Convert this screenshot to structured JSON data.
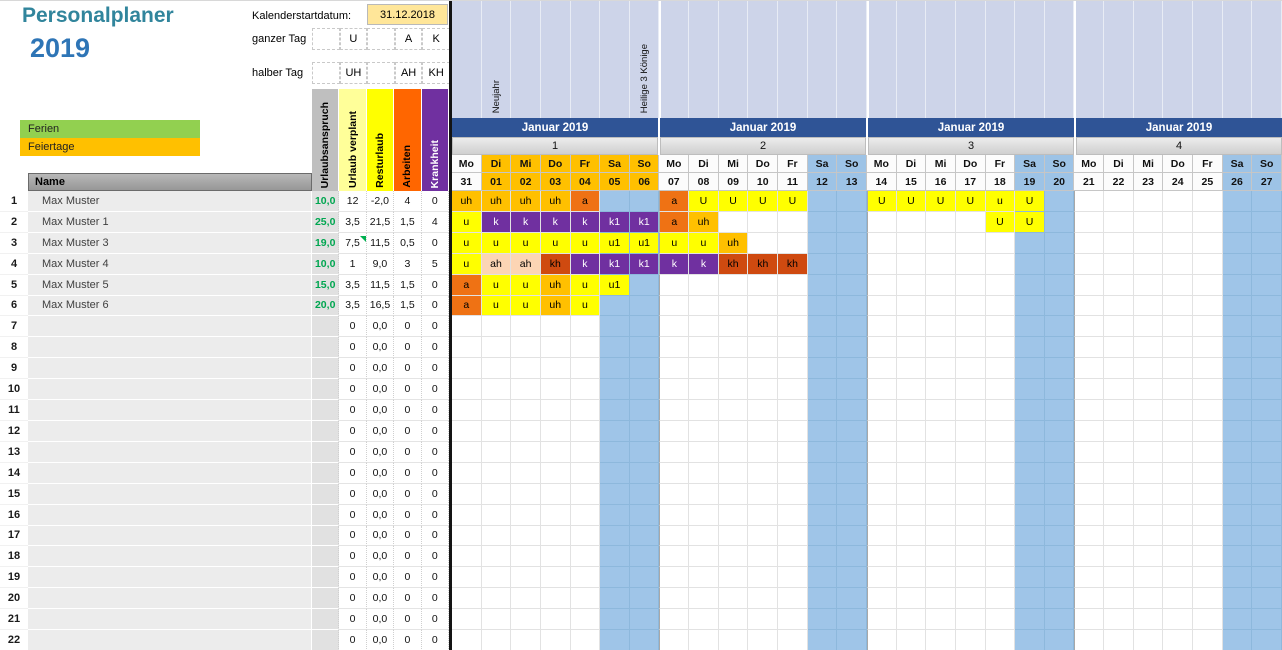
{
  "app": {
    "title": "Personalplaner",
    "year": "2019"
  },
  "calendar_start": {
    "label": "Kalenderstartdatum:",
    "value": "31.12.2018"
  },
  "day_codes": {
    "full_label": "ganzer Tag",
    "half_label": "halber Tag",
    "full": [
      "U",
      "A",
      "K"
    ],
    "half": [
      "UH",
      "AH",
      "KH"
    ]
  },
  "legend": {
    "ferien": {
      "label": "Ferien",
      "color": "#92d050"
    },
    "feiertage": {
      "label": "Feiertage",
      "color": "#ffc000"
    }
  },
  "table": {
    "name_header": "Name",
    "stat_headers": [
      {
        "label": "Urlaubsanspruch",
        "bg": "#bfbfbf",
        "fg": "#000000"
      },
      {
        "label": "Urlaub verplant",
        "bg": "#ffff99",
        "fg": "#000000"
      },
      {
        "label": "Resturlaub",
        "bg": "#ffff00",
        "fg": "#000000"
      },
      {
        "label": "Arbeiten",
        "bg": "#ff6600",
        "fg": "#000000"
      },
      {
        "label": "Krankheit",
        "bg": "#7030a0",
        "fg": "#ffffff"
      }
    ],
    "rows": [
      {
        "num": "1",
        "name": "Max Muster",
        "stats": [
          "10,0",
          "12",
          "-2,0",
          "4",
          "0"
        ]
      },
      {
        "num": "2",
        "name": "Max Muster 1",
        "stats": [
          "25,0",
          "3,5",
          "21,5",
          "1,5",
          "4"
        ]
      },
      {
        "num": "3",
        "name": "Max Muster 3",
        "stats": [
          "19,0",
          "7,5",
          "11,5",
          "0,5",
          "0"
        ],
        "comment_flag": true
      },
      {
        "num": "4",
        "name": "Max Muster 4",
        "stats": [
          "10,0",
          "1",
          "9,0",
          "3",
          "5"
        ]
      },
      {
        "num": "5",
        "name": "Max Muster 5",
        "stats": [
          "15,0",
          "3,5",
          "11,5",
          "1,5",
          "0"
        ]
      },
      {
        "num": "6",
        "name": "Max Muster 6",
        "stats": [
          "20,0",
          "3,5",
          "16,5",
          "1,5",
          "0"
        ]
      },
      {
        "num": "7",
        "name": "",
        "stats": [
          "",
          "0",
          "0,0",
          "0",
          "0"
        ]
      },
      {
        "num": "8",
        "name": "",
        "stats": [
          "",
          "0",
          "0,0",
          "0",
          "0"
        ]
      },
      {
        "num": "9",
        "name": "",
        "stats": [
          "",
          "0",
          "0,0",
          "0",
          "0"
        ]
      },
      {
        "num": "10",
        "name": "",
        "stats": [
          "",
          "0",
          "0,0",
          "0",
          "0"
        ]
      },
      {
        "num": "11",
        "name": "",
        "stats": [
          "",
          "0",
          "0,0",
          "0",
          "0"
        ]
      },
      {
        "num": "12",
        "name": "",
        "stats": [
          "",
          "0",
          "0,0",
          "0",
          "0"
        ]
      },
      {
        "num": "13",
        "name": "",
        "stats": [
          "",
          "0",
          "0,0",
          "0",
          "0"
        ]
      },
      {
        "num": "14",
        "name": "",
        "stats": [
          "",
          "0",
          "0,0",
          "0",
          "0"
        ]
      },
      {
        "num": "15",
        "name": "",
        "stats": [
          "",
          "0",
          "0,0",
          "0",
          "0"
        ]
      },
      {
        "num": "16",
        "name": "",
        "stats": [
          "",
          "0",
          "0,0",
          "0",
          "0"
        ]
      },
      {
        "num": "17",
        "name": "",
        "stats": [
          "",
          "0",
          "0,0",
          "0",
          "0"
        ]
      },
      {
        "num": "18",
        "name": "",
        "stats": [
          "",
          "0",
          "0,0",
          "0",
          "0"
        ]
      },
      {
        "num": "19",
        "name": "",
        "stats": [
          "",
          "0",
          "0,0",
          "0",
          "0"
        ]
      },
      {
        "num": "20",
        "name": "",
        "stats": [
          "",
          "0",
          "0,0",
          "0",
          "0"
        ]
      },
      {
        "num": "21",
        "name": "",
        "stats": [
          "",
          "0",
          "0,0",
          "0",
          "0"
        ]
      },
      {
        "num": "22",
        "name": "",
        "stats": [
          "",
          "0",
          "0,0",
          "0",
          "0"
        ]
      }
    ]
  },
  "calendar": {
    "month_label": "Januar 2019",
    "day_names": [
      "Mo",
      "Di",
      "Mi",
      "Do",
      "Fr",
      "Sa",
      "So"
    ],
    "weeks": [
      {
        "number": "1",
        "day_nums": [
          "31",
          "01",
          "02",
          "03",
          "04",
          "05",
          "06"
        ],
        "day_types": [
          "normal",
          "holiday",
          "holiday",
          "holiday",
          "holiday",
          "holiday",
          "holiday"
        ]
      },
      {
        "number": "2",
        "day_nums": [
          "07",
          "08",
          "09",
          "10",
          "11",
          "12",
          "13"
        ],
        "day_types": [
          "normal",
          "normal",
          "normal",
          "normal",
          "normal",
          "weekend",
          "weekend"
        ]
      },
      {
        "number": "3",
        "day_nums": [
          "14",
          "15",
          "16",
          "17",
          "18",
          "19",
          "20"
        ],
        "day_types": [
          "normal",
          "normal",
          "normal",
          "normal",
          "normal",
          "weekend",
          "weekend"
        ]
      },
      {
        "number": "4",
        "day_nums": [
          "21",
          "22",
          "23",
          "24",
          "25",
          "26",
          "27"
        ],
        "day_types": [
          "normal",
          "normal",
          "normal",
          "normal",
          "normal",
          "weekend",
          "weekend"
        ]
      }
    ],
    "holidays": [
      {
        "col": 1,
        "name": "Neujahr"
      },
      {
        "col": 6,
        "name": "Heilige 3 Könige"
      }
    ],
    "weekend_cols": [
      5,
      6,
      12,
      13,
      19,
      20,
      26,
      27
    ],
    "entries": {
      "1": {
        "0": "uh",
        "1": "uh",
        "2": "uh",
        "3": "uh",
        "4": "a",
        "7": "a",
        "8": "U",
        "9": "U",
        "10": "U",
        "11": "U",
        "14": "U",
        "15": "U",
        "16": "U",
        "17": "U",
        "18": "u",
        "19": "U"
      },
      "2": {
        "0": "u",
        "1": "k",
        "2": "k",
        "3": "k",
        "4": "k",
        "5": "k1",
        "6": "k1",
        "7": "a",
        "8": "uh",
        "18": "U",
        "19": "U"
      },
      "3": {
        "0": "u",
        "1": "u",
        "2": "u",
        "3": "u",
        "4": "u",
        "5": "u1",
        "6": "u1",
        "7": "u",
        "8": "u",
        "9": "uh"
      },
      "4": {
        "0": "u",
        "1": "ah",
        "2": "ah",
        "3": "kh",
        "4": "k",
        "5": "k1",
        "6": "k1",
        "7": "k",
        "8": "k",
        "9": "kh",
        "10": "kh",
        "11": "kh"
      },
      "5": {
        "0": "a",
        "1": "u",
        "2": "u",
        "3": "uh",
        "4": "u",
        "5": "u1"
      },
      "6": {
        "0": "a",
        "1": "u",
        "2": "u",
        "3": "uh",
        "4": "u"
      }
    }
  },
  "entry_styles": {
    "u": {
      "bg": "#ffff00",
      "fg": "#000000"
    },
    "U": {
      "bg": "#ffff00",
      "fg": "#000000"
    },
    "u1": {
      "bg": "#ffff00",
      "fg": "#000000"
    },
    "uh": {
      "bg": "#ffc000",
      "fg": "#000000"
    },
    "a": {
      "bg": "#ef7214",
      "fg": "#000000"
    },
    "ah": {
      "bg": "#fcd5b4",
      "fg": "#000000"
    },
    "k": {
      "bg": "#7030a0",
      "fg": "#ffffff"
    },
    "k1": {
      "bg": "#7030a0",
      "fg": "#ffffff"
    },
    "kh": {
      "bg": "#cf4a10",
      "fg": "#000000"
    }
  },
  "colors": {
    "month_band": "#2f5496",
    "weekend": "#9fc5e8",
    "holiday_header": "#ffc000",
    "holiday_area_bg": "#cdd4e9",
    "weeknum_bg": "#d6d6d6"
  }
}
